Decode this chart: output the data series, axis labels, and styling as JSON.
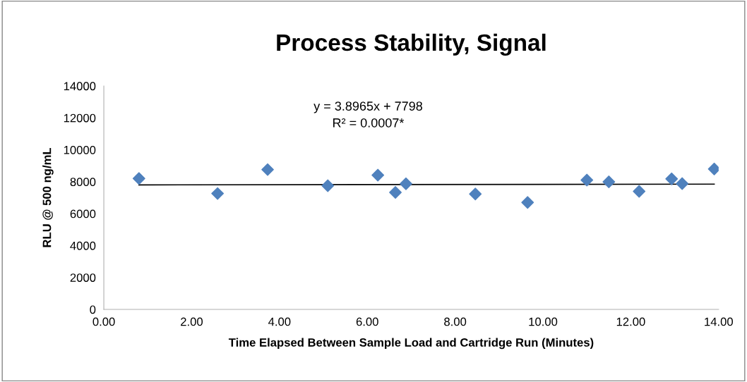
{
  "chart_data": {
    "type": "scatter",
    "title": "Process Stability, Signal",
    "xlabel": "Time Elapsed Between Sample Load and Cartridge Run (Minutes)",
    "ylabel": "RLU @ 500 ng/mL",
    "annotations": [
      "y = 3.8965x + 7798",
      "R² = 0.0007*"
    ],
    "series": [
      {
        "color": "#4f81bd",
        "marker": "diamond",
        "x": [
          0.8,
          2.59,
          3.73,
          5.1,
          6.24,
          6.64,
          6.88,
          8.46,
          9.65,
          11.0,
          11.5,
          12.19,
          12.93,
          13.17,
          13.9
        ],
        "values": [
          8200,
          7260,
          8760,
          7750,
          8410,
          7330,
          7870,
          7230,
          6700,
          8100,
          7990,
          7400,
          8180,
          7880,
          8800
        ]
      },
      {
        "type": "line",
        "color": "#000000",
        "x": [
          0.8,
          13.9
        ],
        "values": [
          7800,
          7850
        ]
      }
    ],
    "xlim": [
      0,
      14
    ],
    "ylim": [
      0,
      14000
    ],
    "xticks": [
      {
        "value": 0,
        "label": "0.00"
      },
      {
        "value": 2,
        "label": "2.00"
      },
      {
        "value": 4,
        "label": "4.00"
      },
      {
        "value": 6,
        "label": "6.00"
      },
      {
        "value": 8,
        "label": "8.00"
      },
      {
        "value": 10,
        "label": "10.00"
      },
      {
        "value": 12,
        "label": "12.00"
      },
      {
        "value": 14,
        "label": "14.00"
      }
    ],
    "yticks": [
      0,
      2000,
      4000,
      6000,
      8000,
      10000,
      12000,
      14000
    ],
    "grid": false,
    "legend": false
  }
}
